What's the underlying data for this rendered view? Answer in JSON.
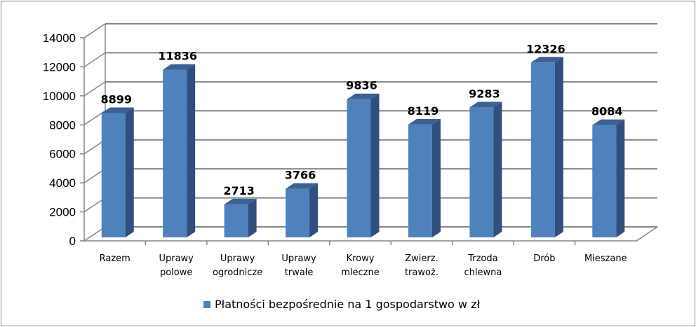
{
  "chart_data": {
    "type": "bar",
    "categories": [
      [
        "Razem"
      ],
      [
        "Uprawy",
        "polowe"
      ],
      [
        "Uprawy",
        "ogrodnicze"
      ],
      [
        "Uprawy",
        "trwałe"
      ],
      [
        "Krowy",
        "mleczne"
      ],
      [
        "Zwierz.",
        "trawoż."
      ],
      [
        "Trzoda",
        "chlewna"
      ],
      [
        "Drób"
      ],
      [
        "Mieszane"
      ]
    ],
    "series": [
      {
        "name": "Płatności bezpośrednie na 1 gospodarstwo w zł",
        "values": [
          8899,
          11836,
          2713,
          3766,
          9836,
          8119,
          9283,
          12326,
          8084
        ],
        "data_labels": [
          "8899",
          "11836",
          "2713",
          "3766",
          "9836",
          "8119",
          "9283",
          "12326",
          "8084"
        ],
        "color": "#4f81bd"
      }
    ],
    "ylim": [
      0,
      14000
    ],
    "yticks": [
      0,
      2000,
      4000,
      6000,
      8000,
      10000,
      12000,
      14000
    ],
    "ytick_labels": [
      "0",
      "2000",
      "4000",
      "6000",
      "8000",
      "10000",
      "12000",
      "14000"
    ],
    "grid": true,
    "three_d": true,
    "legend_position": "bottom"
  }
}
